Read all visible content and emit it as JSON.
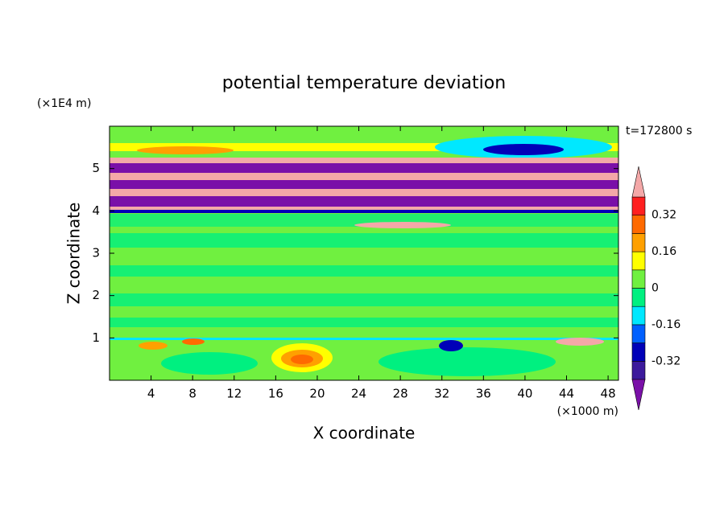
{
  "chart_data": {
    "type": "contour",
    "title": "potential temperature deviation",
    "x_label": "X coordinate",
    "y_label": "Z coordinate",
    "x_unit": "(×1000 m)",
    "y_unit": "(×1E4 m)",
    "time_label": "t=172800 s",
    "xlim": [
      0,
      49
    ],
    "xticks": [
      4,
      8,
      12,
      16,
      20,
      24,
      28,
      32,
      36,
      40,
      44,
      48
    ],
    "ylim": [
      0,
      6
    ],
    "yticks": [
      1,
      2,
      3,
      4,
      5
    ],
    "colorbar": {
      "levels": [
        -0.4,
        -0.32,
        -0.24,
        -0.16,
        -0.08,
        0,
        0.08,
        0.16,
        0.24,
        0.32,
        0.4
      ],
      "colors": [
        "#7a10a8",
        "#3c1a9c",
        "#0000b8",
        "#0060ff",
        "#00e8ff",
        "#00f080",
        "#70f040",
        "#ffff00",
        "#ffa000",
        "#ff6a00",
        "#ff2020",
        "#f4a8a8"
      ],
      "ticks": [
        -0.32,
        -0.16,
        0,
        0.16,
        0.32
      ]
    }
  }
}
